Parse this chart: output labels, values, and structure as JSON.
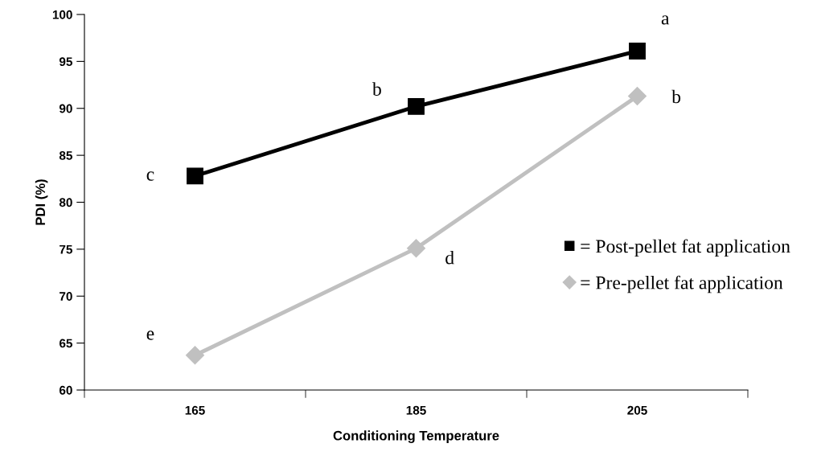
{
  "chart_data": {
    "type": "line",
    "xlabel": "Conditioning Temperature",
    "ylabel": "PDI (%)",
    "categories": [
      "165",
      "185",
      "205"
    ],
    "series": [
      {
        "name": "= Post-pellet fat application",
        "color": "#000000",
        "marker": "square",
        "values": [
          82.8,
          90.2,
          96.1
        ]
      },
      {
        "name": "= Pre-pellet fat application",
        "color": "#c0c0c0",
        "marker": "diamond",
        "values": [
          63.7,
          75.1,
          91.3
        ]
      }
    ],
    "annotations": [
      {
        "text": "c",
        "x": "165",
        "y": 82.8
      },
      {
        "text": "b",
        "x": "185",
        "y": 90.2
      },
      {
        "text": "a",
        "x": "205",
        "y": 96.1
      },
      {
        "text": "e",
        "x": "165",
        "y": 63.7
      },
      {
        "text": "d",
        "x": "185",
        "y": 75.1
      },
      {
        "text": "b",
        "x": "205",
        "y": 91.3
      }
    ],
    "ylim": [
      60,
      100
    ],
    "yticks": [
      60,
      65,
      70,
      75,
      80,
      85,
      90,
      95,
      100
    ],
    "grid": false,
    "legend": "right",
    "line_style": "solid"
  }
}
